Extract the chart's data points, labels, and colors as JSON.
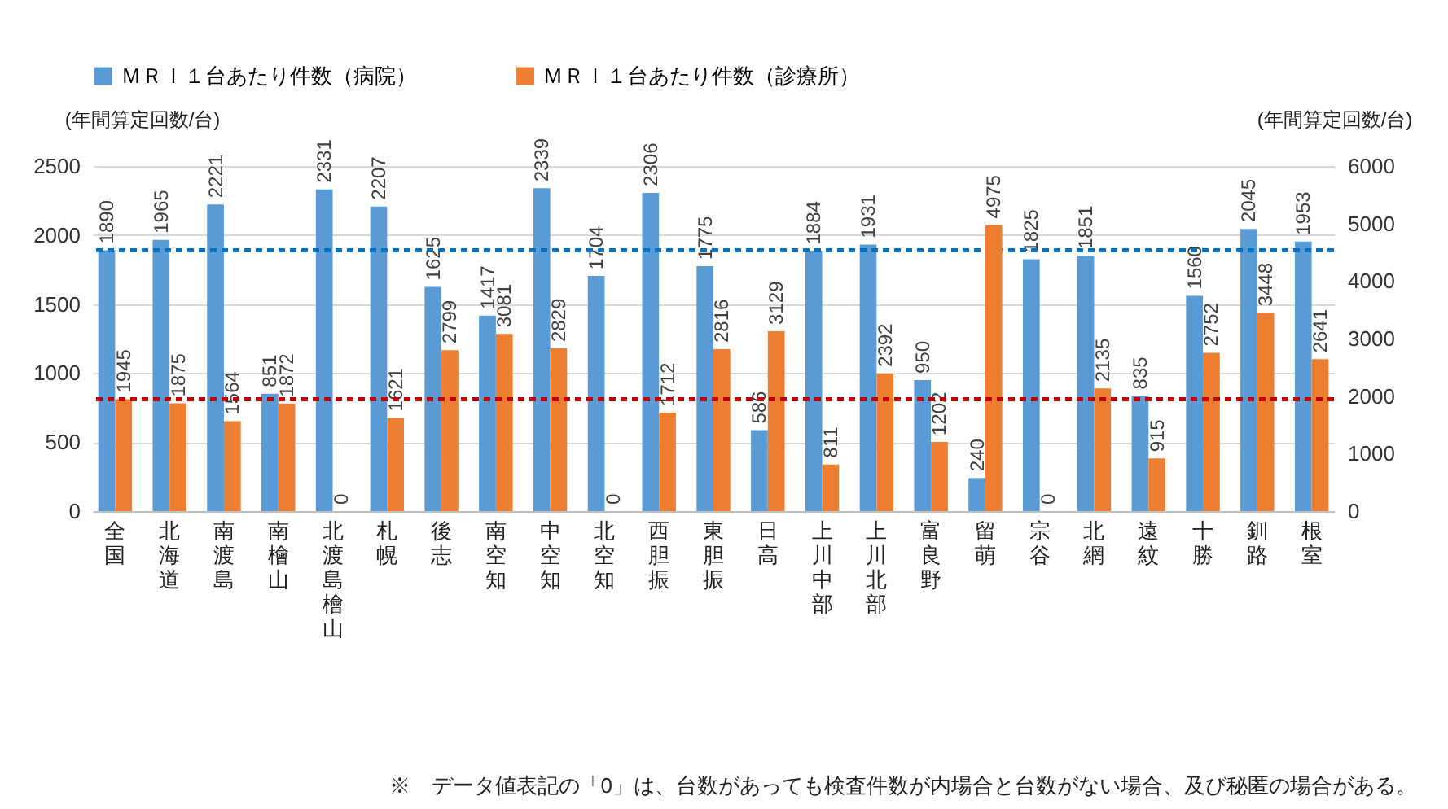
{
  "chart_data": {
    "type": "bar",
    "ylabel": "(年間算定回数/台)",
    "y2label": "(年間算定回数/台)",
    "categories": [
      "全国",
      "北海道",
      "南渡島",
      "南檜山",
      "北渡島檜山",
      "札幌",
      "後志",
      "南空知",
      "中空知",
      "北空知",
      "西胆振",
      "東胆振",
      "日高",
      "上川中部",
      "上川北部",
      "富良野",
      "留萌",
      "宗谷",
      "北網",
      "遠紋",
      "十勝",
      "釧路",
      "根室"
    ],
    "series": [
      {
        "name": "ＭＲＩ１台あたり件数（病院）",
        "color": "#5b9bd5",
        "values": [
          1890,
          1965,
          2221,
          851,
          2331,
          2207,
          1625,
          1417,
          2339,
          1704,
          2306,
          1775,
          586,
          1884,
          1931,
          950,
          240,
          1825,
          1851,
          835,
          1560,
          2045,
          1953
        ]
      },
      {
        "name": "ＭＲＩ１台あたり件数（診療所）",
        "color": "#ed7d31",
        "axis": "y2",
        "values": [
          1945,
          1875,
          1564,
          1872,
          0,
          1621,
          2799,
          3081,
          2829,
          0,
          1712,
          2816,
          3129,
          811,
          2392,
          1202,
          4975,
          0,
          2135,
          915,
          2752,
          3448,
          2641
        ]
      }
    ],
    "ylim": [
      0,
      2500
    ],
    "yticks": [
      0,
      500,
      1000,
      1500,
      2000,
      2500
    ],
    "y2lim": [
      0,
      6000
    ],
    "y2ticks": [
      0,
      1000,
      2000,
      3000,
      4000,
      5000,
      6000
    ],
    "ref_lines": [
      {
        "axis": "y",
        "value": 1890,
        "color": "#0070c0",
        "line_style": "dashed"
      },
      {
        "axis": "y2",
        "value": 1945,
        "color": "#c00000",
        "line_style": "dashed"
      }
    ],
    "data_labels": true,
    "grid": "y",
    "legend": "top",
    "annotations": [
      "※　データ値表記の「0」は、台数があっても検査件数が内場合と台数がない場合、及び秘匿の場合がある。"
    ]
  }
}
